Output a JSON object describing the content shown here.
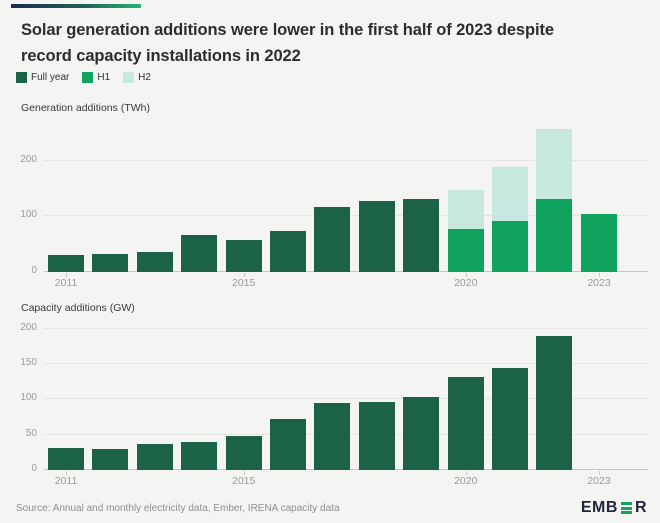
{
  "page": {
    "title": "Solar generation additions were lower in the first half of 2023 despite\nrecord capacity installations in 2022",
    "source": "Source: Annual and monthly electricity data, Ember, IRENA capacity data",
    "logo_prefix": "EMB",
    "logo_suffix": "R"
  },
  "colors": {
    "background": "#f4f4f2",
    "full_year": "#1c6247",
    "h1": "#10a35e",
    "h2": "#c7e8de",
    "gridline": "#e4e4e2",
    "axis": "#c6c6c4",
    "tick_text": "#9b9b9b",
    "gradient_from": "#1d2b4f",
    "gradient_to": "#27b274",
    "logo_navy": "#1f2438",
    "logo_green": "#10a35e"
  },
  "legend": {
    "items": [
      {
        "label": "Full year",
        "color": "#1c6247"
      },
      {
        "label": "H1",
        "color": "#10a35e"
      },
      {
        "label": "H2",
        "color": "#c7e8de"
      }
    ]
  },
  "chart_data": [
    {
      "type": "bar",
      "title": "Generation additions (TWh)",
      "ylabel": "Generation additions (TWh)",
      "categories": [
        "2011",
        "2012",
        "2013",
        "2014",
        "2015",
        "2016",
        "2017",
        "2018",
        "2019",
        "2020",
        "2021",
        "2022",
        "2023"
      ],
      "series": [
        {
          "name": "Full year",
          "values": [
            30,
            33,
            36,
            66,
            57,
            73,
            117,
            128,
            131,
            null,
            null,
            null,
            null
          ]
        },
        {
          "name": "H1",
          "values": [
            null,
            null,
            null,
            null,
            null,
            null,
            null,
            null,
            null,
            77,
            91,
            132,
            104
          ]
        },
        {
          "name": "H2",
          "values": [
            null,
            null,
            null,
            null,
            null,
            null,
            null,
            null,
            null,
            71,
            98,
            126,
            null
          ]
        }
      ],
      "stacked": true,
      "ylim": [
        0,
        270
      ],
      "yticks": [
        0,
        100,
        200
      ],
      "xticks": [
        "2011",
        "2015",
        "2020",
        "2023"
      ],
      "grid": true,
      "legend_position": "top"
    },
    {
      "type": "bar",
      "title": "Capacity additions (GW)",
      "ylabel": "Capacity additions (GW)",
      "categories": [
        "2011",
        "2012",
        "2013",
        "2014",
        "2015",
        "2016",
        "2017",
        "2018",
        "2019",
        "2020",
        "2021",
        "2022",
        "2023"
      ],
      "series": [
        {
          "name": "Full year",
          "values": [
            31,
            30,
            37,
            39,
            48,
            72,
            95,
            96,
            103,
            132,
            144,
            190,
            null
          ]
        }
      ],
      "stacked": false,
      "ylim": [
        0,
        212
      ],
      "yticks": [
        0,
        50,
        100,
        150,
        200
      ],
      "xticks": [
        "2011",
        "2015",
        "2020",
        "2023"
      ],
      "grid": true,
      "legend_position": "top"
    }
  ]
}
